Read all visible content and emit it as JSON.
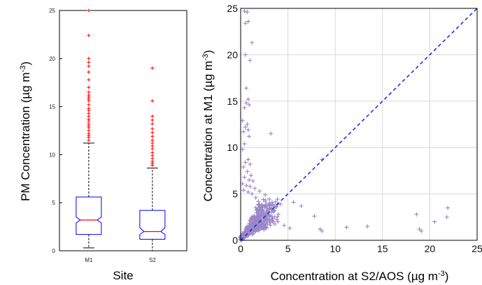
{
  "chart_data": [
    {
      "type": "boxplot",
      "title": "",
      "xlabel": "Site",
      "ylabel": "PM Concentration (µg m-3)",
      "ylabel_main": "PM Concentration (µg m",
      "ylabel_sup": "-3",
      "ylabel_end": ")",
      "ylim": [
        0,
        25
      ],
      "yticks": [
        0,
        5,
        10,
        15,
        20,
        25
      ],
      "grid": false,
      "categories": [
        "M1",
        "S2"
      ],
      "box_color": "#0000ff",
      "median_color": "#ff0000",
      "outlier_color": "#ff0000",
      "whisker_color": "#000000",
      "boxes": [
        {
          "name": "M1",
          "min": 0.3,
          "q1": 1.7,
          "median": 3.2,
          "q3": 5.6,
          "max": 11.2,
          "notch_low": 2.9,
          "notch_high": 3.5,
          "outliers": [
            11.5,
            11.8,
            12.0,
            12.2,
            12.5,
            12.8,
            13.0,
            13.2,
            13.5,
            13.7,
            14.0,
            14.3,
            14.6,
            14.8,
            15.2,
            15.6,
            15.8,
            16.0,
            16.2,
            16.5,
            17.0,
            17.8,
            18.6,
            19.2,
            19.6,
            20.0,
            22.4,
            25.0
          ]
        },
        {
          "name": "S2",
          "min": 0.0,
          "q1": 1.2,
          "median": 2.0,
          "q3": 4.2,
          "max": 8.6,
          "notch_low": 1.7,
          "notch_high": 2.4,
          "outliers": [
            8.9,
            9.1,
            9.3,
            9.6,
            9.9,
            10.2,
            10.6,
            10.9,
            11.2,
            11.5,
            11.9,
            12.3,
            12.7,
            13.2,
            13.6,
            14.0,
            15.6,
            19.0
          ]
        }
      ]
    },
    {
      "type": "scatter",
      "title": "",
      "xlabel": "Concentration at S2/AOS (µg m-3)",
      "xlabel_main": "Concentration at S2/AOS (µg m",
      "xlabel_sup": "-3",
      "xlabel_end": ")",
      "ylabel": "Concentration at M1 (µg m-3)",
      "ylabel_main": "Concentration at M1 (µg m",
      "ylabel_sup": "-3",
      "ylabel_end": ")",
      "xlim": [
        0,
        25
      ],
      "ylim": [
        0,
        25
      ],
      "xticks": [
        0,
        5,
        10,
        15,
        20,
        25
      ],
      "yticks": [
        0,
        5,
        10,
        15,
        20,
        25
      ],
      "grid": true,
      "marker": "+",
      "marker_color": "#9b86c6",
      "reference_line": {
        "style": "dashed",
        "color": "#1f2fd6",
        "from": [
          0,
          0
        ],
        "to": [
          25,
          25
        ]
      },
      "points": [
        [
          0.4,
          24.7
        ],
        [
          0.7,
          24.6
        ],
        [
          0.5,
          23.4
        ],
        [
          0.8,
          23.6
        ],
        [
          1.2,
          21.3
        ],
        [
          0.5,
          20.0
        ],
        [
          1.0,
          19.4
        ],
        [
          0.6,
          16.4
        ],
        [
          0.8,
          15.2
        ],
        [
          0.6,
          14.8
        ],
        [
          0.9,
          14.6
        ],
        [
          0.4,
          14.3
        ],
        [
          0.2,
          12.9
        ],
        [
          0.7,
          12.5
        ],
        [
          0.5,
          12.2
        ],
        [
          0.8,
          11.9
        ],
        [
          0.3,
          11.7
        ],
        [
          3.2,
          11.5
        ],
        [
          0.9,
          11.2
        ],
        [
          0.4,
          10.4
        ],
        [
          0.2,
          9.8
        ],
        [
          0.8,
          8.7
        ],
        [
          0.5,
          8.4
        ],
        [
          1.0,
          8.2
        ],
        [
          0.3,
          7.9
        ],
        [
          0.7,
          7.4
        ],
        [
          1.1,
          7.0
        ],
        [
          0.4,
          6.8
        ],
        [
          0.9,
          6.5
        ],
        [
          1.3,
          6.4
        ],
        [
          0.2,
          6.1
        ],
        [
          0.6,
          5.9
        ],
        [
          1.0,
          5.8
        ],
        [
          1.5,
          5.6
        ],
        [
          0.3,
          5.4
        ],
        [
          2.0,
          5.3
        ],
        [
          0.8,
          5.2
        ],
        [
          1.2,
          5.0
        ],
        [
          2.6,
          4.9
        ],
        [
          5.6,
          4.1
        ],
        [
          4.2,
          3.9
        ],
        [
          3.8,
          3.6
        ],
        [
          6.4,
          3.7
        ],
        [
          7.8,
          2.6
        ],
        [
          8.4,
          1.2
        ],
        [
          8.6,
          1.0
        ],
        [
          4.6,
          1.6
        ],
        [
          5.2,
          1.3
        ],
        [
          11.2,
          1.4
        ],
        [
          13.4,
          1.5
        ],
        [
          18.6,
          2.8
        ],
        [
          18.9,
          1.2
        ],
        [
          19.1,
          1.0
        ],
        [
          20.5,
          2.0
        ],
        [
          21.9,
          3.5
        ],
        [
          21.8,
          2.5
        ],
        [
          8.6,
          8.7
        ],
        [
          2.4,
          4.4
        ],
        [
          3.0,
          4.0
        ],
        [
          3.6,
          3.2
        ],
        [
          4.0,
          2.8
        ],
        [
          2.8,
          2.2
        ],
        [
          1.6,
          4.6
        ]
      ]
    }
  ]
}
